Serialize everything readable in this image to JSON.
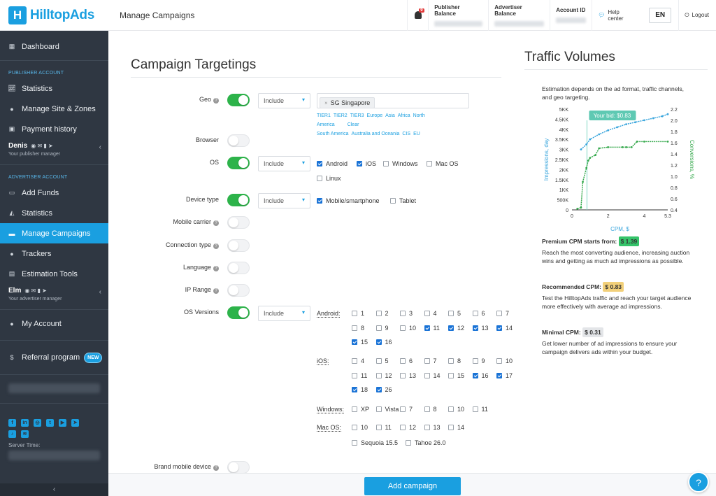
{
  "brand": {
    "name": "HilltopAds",
    "mark": "H"
  },
  "topbar": {
    "page_title": "Manage Campaigns",
    "notifications_count": "9",
    "publisher_balance": "Publisher Balance",
    "advertiser_balance": "Advertiser Balance",
    "account_id": "Account ID",
    "help_center": "Help center",
    "language": "EN",
    "logout": "Logout"
  },
  "sidebar": {
    "dashboard": "Dashboard",
    "publisher_section": "PUBLISHER ACCOUNT",
    "publisher_items": [
      "Statistics",
      "Manage Site & Zones",
      "Payment history"
    ],
    "publisher_manager": {
      "name": "Denis",
      "role": "Your publisher manager"
    },
    "advertiser_section": "ADVERTISER ACCOUNT",
    "advertiser_items": [
      "Add Funds",
      "Statistics",
      "Manage Campaigns",
      "Trackers",
      "Estimation Tools"
    ],
    "advertiser_manager": {
      "name": "Elm",
      "role": "Your advertiser manager"
    },
    "my_account": "My Account",
    "referral": "Referral program",
    "new_badge": "NEW",
    "server_time": "Server Time:",
    "collapse": "‹"
  },
  "form": {
    "title": "Campaign Targetings",
    "labels": {
      "geo": "Geo",
      "browser": "Browser",
      "os": "OS",
      "device_type": "Device type",
      "mobile_carrier": "Mobile carrier",
      "connection_type": "Connection type",
      "language": "Language",
      "ip_range": "IP Range",
      "os_versions": "OS Versions",
      "brand_mobile_device": "Brand mobile device"
    },
    "include": "Include",
    "geo_chip": "SG Singapore",
    "geo_links": [
      "TIER1",
      "TIER2",
      "TIER3",
      "Europe",
      "Asia",
      "Africa",
      "North America",
      "Clear",
      "South America",
      "Australia and Oceania",
      "CIS",
      "EU"
    ],
    "os_options": [
      {
        "label": "Android",
        "checked": true
      },
      {
        "label": "iOS",
        "checked": true
      },
      {
        "label": "Windows",
        "checked": false
      },
      {
        "label": "Mac OS",
        "checked": false
      },
      {
        "label": "Linux",
        "checked": false
      }
    ],
    "device_options": [
      {
        "label": "Mobile/smartphone",
        "checked": true
      },
      {
        "label": "Tablet",
        "checked": false
      }
    ],
    "os_versions": {
      "android_label": "Android:",
      "android": [
        {
          "v": "1",
          "c": false
        },
        {
          "v": "2",
          "c": false
        },
        {
          "v": "3",
          "c": false
        },
        {
          "v": "4",
          "c": false
        },
        {
          "v": "5",
          "c": false
        },
        {
          "v": "6",
          "c": false
        },
        {
          "v": "7",
          "c": false
        },
        {
          "v": "8",
          "c": false
        },
        {
          "v": "9",
          "c": false
        },
        {
          "v": "10",
          "c": false
        },
        {
          "v": "11",
          "c": true
        },
        {
          "v": "12",
          "c": true
        },
        {
          "v": "13",
          "c": true
        },
        {
          "v": "14",
          "c": true
        },
        {
          "v": "15",
          "c": true
        },
        {
          "v": "16",
          "c": true
        }
      ],
      "ios_label": "iOS:",
      "ios": [
        {
          "v": "4",
          "c": false
        },
        {
          "v": "5",
          "c": false
        },
        {
          "v": "6",
          "c": false
        },
        {
          "v": "7",
          "c": false
        },
        {
          "v": "8",
          "c": false
        },
        {
          "v": "9",
          "c": false
        },
        {
          "v": "10",
          "c": false
        },
        {
          "v": "11",
          "c": false
        },
        {
          "v": "12",
          "c": false
        },
        {
          "v": "13",
          "c": false
        },
        {
          "v": "14",
          "c": false
        },
        {
          "v": "15",
          "c": false
        },
        {
          "v": "16",
          "c": true
        },
        {
          "v": "17",
          "c": true
        },
        {
          "v": "18",
          "c": true
        },
        {
          "v": "26",
          "c": true
        }
      ],
      "windows_label": "Windows:",
      "windows": [
        {
          "v": "XP",
          "c": false
        },
        {
          "v": "Vista",
          "c": false
        },
        {
          "v": "7",
          "c": false
        },
        {
          "v": "8",
          "c": false
        },
        {
          "v": "10",
          "c": false
        },
        {
          "v": "11",
          "c": false
        }
      ],
      "macos_label": "Mac OS:",
      "macos": [
        {
          "v": "10",
          "c": false
        },
        {
          "v": "11",
          "c": false
        },
        {
          "v": "12",
          "c": false
        },
        {
          "v": "13",
          "c": false
        },
        {
          "v": "14",
          "c": false
        },
        {
          "v": "Sequoia 15.5",
          "c": false
        },
        {
          "v": "Tahoe 26.0",
          "c": false
        }
      ]
    },
    "submit": "Add campaign"
  },
  "traffic": {
    "title": "Traffic Volumes",
    "description": "Estimation depends on the ad format, traffic channels, and geo targeting.",
    "premium": {
      "label": "Premium CPM starts from:",
      "price": "$ 1.39",
      "text": "Reach the most converting audience, increasing auction wins and getting as much ad impressions as possible.",
      "color": "#35c46a"
    },
    "recommended": {
      "label": "Recommended CPM:",
      "price": "$ 0.83",
      "text": "Test the HilltopAds traffic and reach your target audience more effectively with average ad impressions.",
      "color": "#f2d07a"
    },
    "minimal": {
      "label": "Minimal CPM:",
      "price": "$ 0.31",
      "text": "Get lower number of ad impressions to ensure your campaign delivers ads within your budget.",
      "color": "#e3e5e8"
    }
  },
  "chart_data": {
    "type": "line",
    "xlabel": "CPM, $",
    "ylabel": "Impressions, day",
    "y2label": "Conversions, %",
    "xlim": [
      0,
      5.3
    ],
    "x_ticks": [
      "0",
      "2",
      "4",
      "5.3"
    ],
    "ylim": [
      0,
      5000
    ],
    "y_ticks": [
      "0",
      "500K",
      "1KK",
      "1.5KK",
      "2KK",
      "2.5KK",
      "3KK",
      "3.5KK",
      "4KK",
      "4.5KK",
      "5KK"
    ],
    "y2lim": [
      0.4,
      2.2
    ],
    "y2_ticks": [
      "0.4",
      "0.6",
      "0.8",
      "1.0",
      "1.2",
      "1.4",
      "1.6",
      "1.8",
      "2.0",
      "2.2"
    ],
    "bid_label": "Your bid: $0.83",
    "bid_x": 0.83,
    "series": [
      {
        "axis": "left",
        "color": "#3aa6dd",
        "x": [
          0.5,
          0.8,
          1.0,
          1.5,
          2.0,
          2.5,
          3.0,
          3.5,
          4.0,
          4.5,
          5.0,
          5.3
        ],
        "y": [
          3000,
          3250,
          3500,
          3750,
          3950,
          4100,
          4250,
          4350,
          4450,
          4550,
          4650,
          4750
        ]
      },
      {
        "axis": "right",
        "color": "#36a94d",
        "x": [
          0.3,
          0.5,
          0.6,
          0.8,
          0.9,
          1.0,
          1.3,
          1.5,
          2.0,
          2.8,
          3.0,
          3.3,
          3.6,
          4.0,
          5.3
        ],
        "y": [
          0.42,
          0.44,
          0.9,
          1.15,
          1.28,
          1.33,
          1.38,
          1.5,
          1.52,
          1.52,
          1.52,
          1.52,
          1.62,
          1.62,
          1.62
        ]
      }
    ]
  }
}
